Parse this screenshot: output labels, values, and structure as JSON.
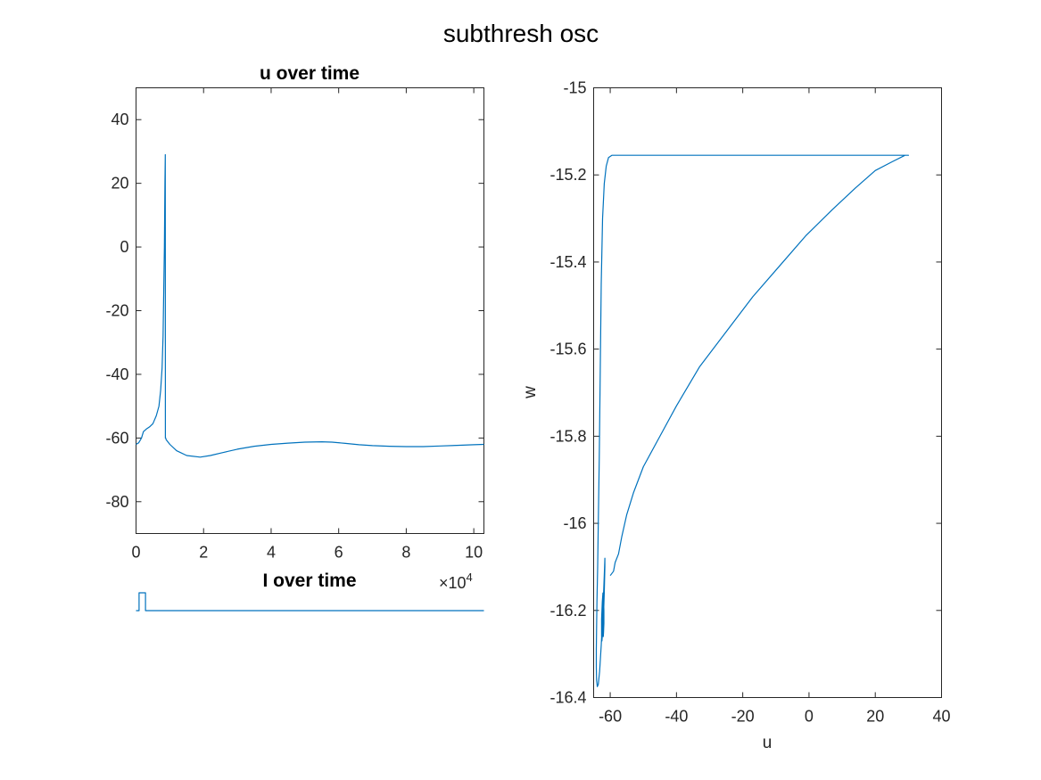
{
  "figure_title": "subthresh osc",
  "colors": {
    "series": "#0072BD",
    "axis": "#262626"
  },
  "chart_data": [
    {
      "type": "line",
      "title": "u over time",
      "xlabel": "",
      "ylabel": "",
      "xlim": [
        0,
        103000
      ],
      "ylim": [
        -90,
        50
      ],
      "xticks": [
        0,
        20000,
        40000,
        60000,
        80000,
        100000
      ],
      "xtick_labels": [
        "0",
        "2",
        "4",
        "6",
        "8",
        "10"
      ],
      "x_exponent_label": "×10",
      "x_exponent_power": "4",
      "yticks": [
        -80,
        -60,
        -40,
        -20,
        0,
        20,
        40
      ],
      "ytick_labels": [
        "-80",
        "-60",
        "-40",
        "-20",
        "0",
        "20",
        "40"
      ],
      "grid": false,
      "series": [
        {
          "x": [
            0,
            800,
            1600,
            2200,
            3000,
            4000,
            5000,
            6000,
            6800,
            7300,
            7700,
            8000,
            8200,
            8400,
            8550,
            8650,
            8700,
            8750,
            8800,
            8900,
            10000,
            12000,
            15000,
            19000,
            22000,
            26000,
            30000,
            35000,
            40000,
            45000,
            50000,
            55000,
            58000,
            62000,
            66000,
            70000,
            75000,
            80000,
            85000,
            90000,
            95000,
            100000,
            103000
          ],
          "y": [
            -62,
            -61.5,
            -60,
            -58,
            -57.2,
            -56.5,
            -55.5,
            -53,
            -50,
            -45,
            -38,
            -28,
            -15,
            0,
            20,
            29,
            -60,
            -60,
            -60,
            -60.5,
            -62,
            -64,
            -65.5,
            -66,
            -65.5,
            -64.5,
            -63.5,
            -62.6,
            -62.0,
            -61.6,
            -61.3,
            -61.2,
            -61.3,
            -61.7,
            -62.1,
            -62.4,
            -62.6,
            -62.7,
            -62.7,
            -62.5,
            -62.3,
            -62.1,
            -62
          ]
        }
      ]
    },
    {
      "type": "line",
      "title": "I over time",
      "xlim": [
        0,
        103000
      ],
      "axis_visible": false,
      "series": [
        {
          "x": [
            0,
            900,
            900,
            2800,
            2800,
            103000
          ],
          "y": [
            0,
            0,
            1,
            1,
            0,
            0
          ]
        }
      ]
    },
    {
      "type": "line",
      "title": "",
      "xlabel": "u",
      "ylabel": "w",
      "xlim": [
        -65,
        40
      ],
      "ylim": [
        -16.4,
        -15
      ],
      "xticks": [
        -60,
        -40,
        -20,
        0,
        20,
        40
      ],
      "xtick_labels": [
        "-60",
        "-40",
        "-20",
        "0",
        "20",
        "40"
      ],
      "yticks": [
        -16.4,
        -16.2,
        -16,
        -15.8,
        -15.6,
        -15.4,
        -15.2,
        -15
      ],
      "ytick_labels": [
        "-16.4",
        "-16.2",
        "-16",
        "-15.8",
        "-15.6",
        "-15.4",
        "-15.2",
        "-15"
      ],
      "grid": false,
      "series": [
        {
          "x": [
            -60,
            -59.0,
            -58.5,
            -57.5,
            -56.5,
            -55.0,
            -53.0,
            -50.0,
            -45.0,
            -40.0,
            -33.0,
            -25.0,
            -17.0,
            -9.0,
            -1.0,
            7.0,
            14.0,
            20.0,
            25.0,
            29.0,
            30.0,
            27.0,
            20.0,
            10.0,
            0.0,
            -15.0,
            -30.0,
            -45.0,
            -55.0,
            -59.5,
            -60.5,
            -61.2,
            -61.8,
            -62.3,
            -62.7,
            -63.0,
            -63.3,
            -63.6,
            -63.8,
            -64.0,
            -64.1,
            -64.2,
            -64.2,
            -64.1,
            -63.9,
            -63.6,
            -63.2,
            -62.7,
            -62.2,
            -61.8,
            -61.6,
            -61.6,
            -61.8,
            -62.0,
            -62.3,
            -62.5,
            -62.6,
            -62.6,
            -62.4,
            -62.2,
            -62.0,
            -61.9,
            -61.9,
            -62.0,
            -62.1,
            -62.2,
            -62.3,
            -62.3,
            -62.2,
            -62.1
          ],
          "y": [
            -16.12,
            -16.11,
            -16.09,
            -16.07,
            -16.03,
            -15.98,
            -15.93,
            -15.87,
            -15.8,
            -15.73,
            -15.64,
            -15.56,
            -15.48,
            -15.41,
            -15.34,
            -15.28,
            -15.23,
            -15.19,
            -15.17,
            -15.155,
            -15.155,
            -15.155,
            -15.155,
            -15.155,
            -15.155,
            -15.155,
            -15.155,
            -15.155,
            -15.155,
            -15.155,
            -15.16,
            -15.18,
            -15.22,
            -15.3,
            -15.45,
            -15.65,
            -15.85,
            -16.0,
            -16.1,
            -16.18,
            -16.24,
            -16.29,
            -16.33,
            -16.36,
            -16.375,
            -16.37,
            -16.34,
            -16.28,
            -16.2,
            -16.12,
            -16.08,
            -16.1,
            -16.16,
            -16.21,
            -16.25,
            -16.27,
            -16.26,
            -16.22,
            -16.18,
            -16.16,
            -16.17,
            -16.2,
            -16.23,
            -16.25,
            -16.26,
            -16.25,
            -16.23,
            -16.21,
            -16.2,
            -16.2
          ]
        }
      ]
    }
  ]
}
